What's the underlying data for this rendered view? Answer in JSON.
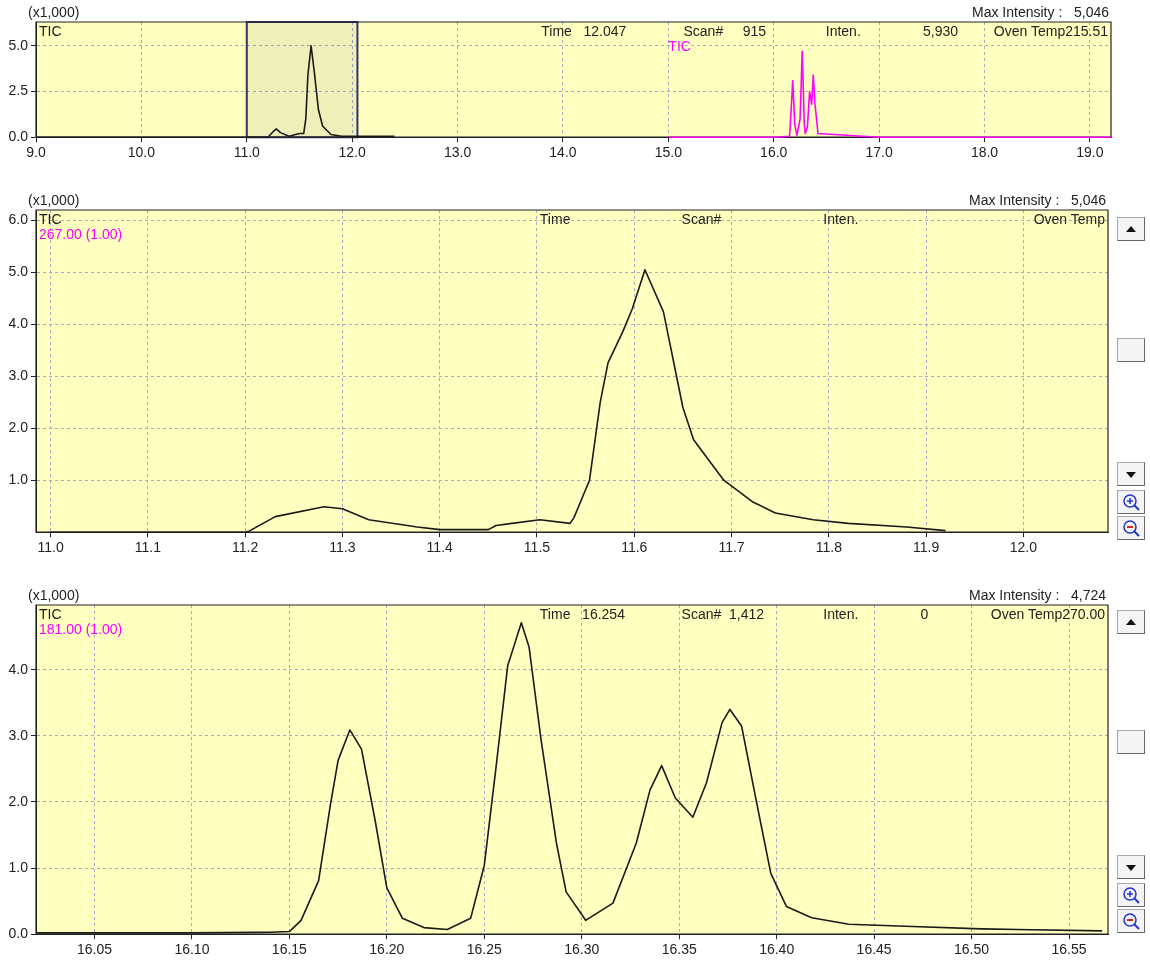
{
  "chart_data": [
    {
      "type": "line",
      "ylabel": "(x1,000)",
      "marker": "none",
      "grid": true,
      "legend": false,
      "annotations": [
        "Max Intensity :   5,046",
        "Time   12.047",
        "Scan#     915",
        "Inten.                5,930",
        "Oven Temp215.51"
      ],
      "xlim": [
        9.0,
        19.2
      ],
      "ylim": [
        0,
        6.3
      ],
      "xticks": [
        {
          "value": 9,
          "label": "9.0"
        },
        {
          "value": 10,
          "label": "10.0"
        },
        {
          "value": 11,
          "label": "11.0"
        },
        {
          "value": 12,
          "label": "12.0"
        },
        {
          "value": 13,
          "label": "13.0"
        },
        {
          "value": 14,
          "label": "14.0"
        },
        {
          "value": 15,
          "label": "15.0"
        },
        {
          "value": 16,
          "label": "16.0"
        },
        {
          "value": 17,
          "label": "17.0"
        },
        {
          "value": 18,
          "label": "18.0"
        },
        {
          "value": 19,
          "label": "19.0"
        }
      ],
      "yticks": [
        {
          "value": 0,
          "label": "0.0"
        },
        2.5,
        {
          "value": 5,
          "label": "5.0"
        }
      ],
      "bands": [
        {
          "axis": "x",
          "from": 11.0,
          "to": 12.05,
          "color": "#333366"
        }
      ],
      "series": [
        {
          "name": "TIC",
          "color": "#1a1a1a",
          "x": [
            9.0,
            10.0,
            11.0,
            11.2,
            11.25,
            11.28,
            11.32,
            11.4,
            11.5,
            11.54,
            11.56,
            11.58,
            11.61,
            11.64,
            11.68,
            11.72,
            11.8,
            11.9,
            12.0,
            12.4
          ],
          "values": [
            0,
            0,
            0,
            0,
            0.3,
            0.45,
            0.25,
            0.05,
            0.2,
            0.2,
            1.0,
            3.4,
            5.0,
            3.6,
            1.5,
            0.6,
            0.15,
            0.05,
            0.05,
            0.05
          ]
        },
        {
          "name": "TIC",
          "color": "#ff00ff",
          "x": [
            15.0,
            16.0,
            16.15,
            16.17,
            16.18,
            16.2,
            16.22,
            16.25,
            16.27,
            16.29,
            16.3,
            16.32,
            16.34,
            16.36,
            16.375,
            16.39,
            16.42,
            17.0,
            18.0,
            19.2
          ],
          "values": [
            0,
            0,
            0.05,
            2.0,
            3.1,
            0.7,
            0.1,
            1.0,
            4.7,
            0.7,
            0.2,
            0.6,
            2.5,
            1.8,
            3.4,
            1.9,
            0.2,
            0,
            0,
            0
          ]
        }
      ]
    },
    {
      "type": "line",
      "ylabel": "(x1,000)",
      "subtitle": "267.00 (1.00)",
      "marker": "none",
      "grid": true,
      "legend": false,
      "annotations": [
        "Max Intensity :   5,046",
        "Time",
        "Scan#",
        "Inten.",
        "Oven Temp"
      ],
      "xlim": [
        10.985,
        12.087
      ],
      "ylim": [
        0,
        6.2
      ],
      "xticks": [
        {
          "value": 11.0,
          "label": "11.0"
        },
        11.1,
        11.2,
        11.3,
        11.4,
        11.5,
        11.6,
        11.7,
        11.8,
        11.9,
        {
          "value": 12.0,
          "label": "12.0"
        }
      ],
      "yticks": [
        {
          "value": 1,
          "label": "1.0"
        },
        {
          "value": 2,
          "label": "2.0"
        },
        {
          "value": 3,
          "label": "3.0"
        },
        {
          "value": 4,
          "label": "4.0"
        },
        {
          "value": 5,
          "label": "5.0"
        },
        {
          "value": 6,
          "label": "6.0"
        }
      ],
      "series": [
        {
          "name": "TIC",
          "color": "#1a1a1a",
          "x": [
            11.0,
            11.1,
            11.2,
            11.204,
            11.231,
            11.281,
            11.3,
            11.327,
            11.377,
            11.4,
            11.45,
            11.458,
            11.503,
            11.534,
            11.538,
            11.554,
            11.565,
            11.573,
            11.588,
            11.598,
            11.611,
            11.63,
            11.65,
            11.661,
            11.692,
            11.722,
            11.745,
            11.784,
            11.82,
            11.88,
            11.92
          ],
          "values": [
            0,
            0,
            0,
            0.02,
            0.3,
            0.49,
            0.45,
            0.24,
            0.1,
            0.05,
            0.05,
            0.13,
            0.24,
            0.17,
            0.28,
            1.0,
            2.5,
            3.26,
            3.85,
            4.3,
            5.05,
            4.24,
            2.4,
            1.78,
            1.0,
            0.58,
            0.37,
            0.24,
            0.17,
            0.1,
            0.03
          ]
        }
      ]
    },
    {
      "type": "line",
      "ylabel": "(x1,000)",
      "subtitle": "181.00 (1.00)",
      "marker": "none",
      "grid": true,
      "legend": false,
      "annotations": [
        "Max Intensity :   4,724",
        "Time   16.254",
        "Scan#  1,412",
        "Inten.                0",
        "Oven Temp270.00"
      ],
      "xlim": [
        16.02,
        16.57
      ],
      "ylim": [
        0,
        4.98
      ],
      "xticks": [
        16.05,
        {
          "value": 16.1,
          "label": "16.10"
        },
        16.15,
        {
          "value": 16.2,
          "label": "16.20"
        },
        16.25,
        {
          "value": 16.3,
          "label": "16.30"
        },
        16.35,
        {
          "value": 16.4,
          "label": "16.40"
        },
        16.45,
        {
          "value": 16.5,
          "label": "16.50"
        },
        16.55
      ],
      "yticks": [
        {
          "value": 0,
          "label": "0.0"
        },
        {
          "value": 1,
          "label": "1.0"
        },
        {
          "value": 2,
          "label": "2.0"
        },
        {
          "value": 3,
          "label": "3.0"
        },
        {
          "value": 4,
          "label": "4.0"
        }
      ],
      "series": [
        {
          "name": "TIC",
          "color": "#1a1a1a",
          "x": [
            16.02,
            16.1,
            16.14,
            16.15,
            16.156,
            16.165,
            16.171,
            16.175,
            16.181,
            16.187,
            16.194,
            16.2,
            16.208,
            16.219,
            16.231,
            16.243,
            16.25,
            16.256,
            16.262,
            16.269,
            16.273,
            16.279,
            16.287,
            16.292,
            16.302,
            16.316,
            16.328,
            16.335,
            16.341,
            16.348,
            16.357,
            16.364,
            16.372,
            16.376,
            16.382,
            16.39,
            16.397,
            16.405,
            16.418,
            16.437,
            16.466,
            16.505,
            16.567
          ],
          "values": [
            0.02,
            0.02,
            0.03,
            0.04,
            0.21,
            0.81,
            1.95,
            2.63,
            3.09,
            2.8,
            1.72,
            0.7,
            0.24,
            0.1,
            0.07,
            0.24,
            1.04,
            2.52,
            4.06,
            4.71,
            4.34,
            2.97,
            1.38,
            0.64,
            0.21,
            0.47,
            1.38,
            2.18,
            2.55,
            2.06,
            1.77,
            2.29,
            3.2,
            3.4,
            3.15,
            1.95,
            0.92,
            0.42,
            0.25,
            0.15,
            0.12,
            0.08,
            0.05
          ]
        }
      ]
    }
  ]
}
